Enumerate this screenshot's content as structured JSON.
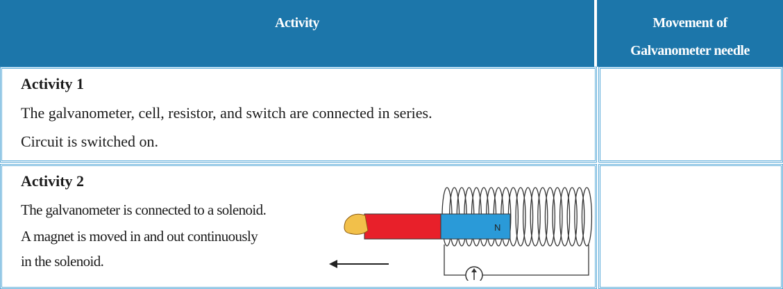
{
  "header": {
    "activity": "Activity",
    "movement": [
      "Movement of",
      "Galvanometer needle"
    ]
  },
  "rows": [
    {
      "title": "Activity 1",
      "lines": [
        "The galvanometer, cell, resistor, and switch are connected in series.",
        "Circuit is switched on."
      ]
    },
    {
      "title": "Activity 2",
      "lines": [
        "The galvanometer is connected to a solenoid.",
        "A magnet is moved in and out continuously",
        "in the solenoid."
      ],
      "figure_label": "N"
    }
  ]
}
